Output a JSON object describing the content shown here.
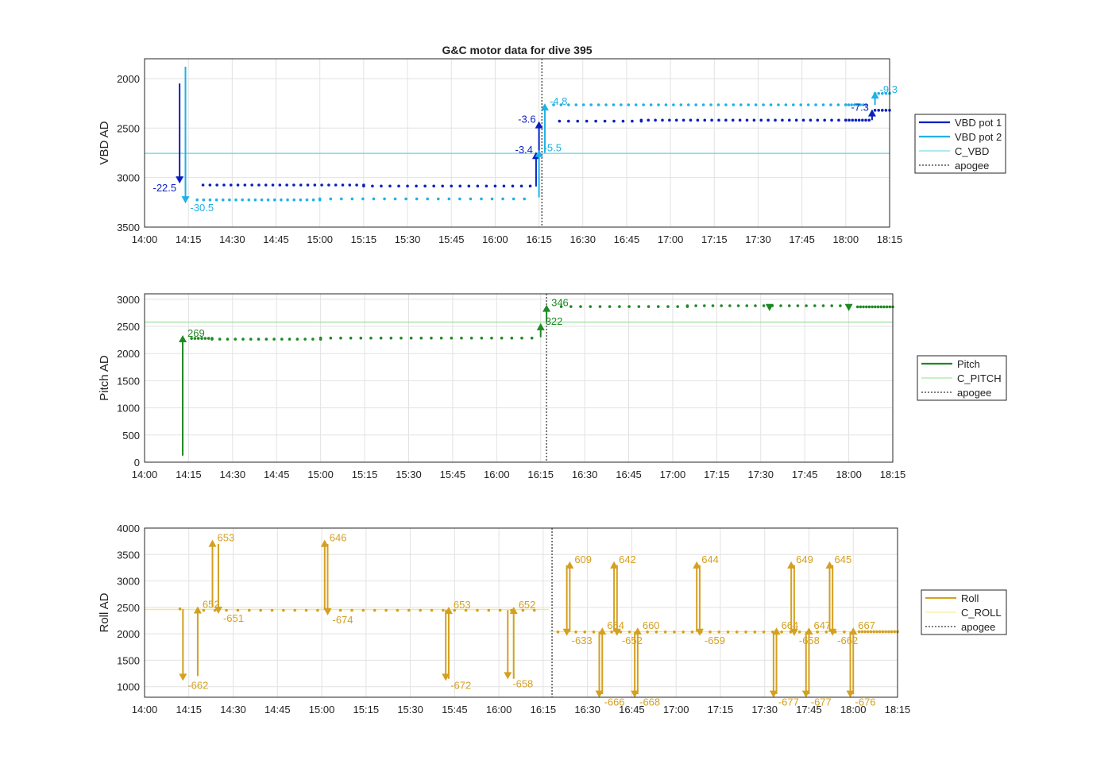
{
  "title": "G&C motor data for dive 395",
  "chart_data": [
    {
      "type": "line",
      "ylabel": "VBD AD",
      "xlabel": "",
      "xlim": [
        "14:00",
        "18:15"
      ],
      "ylim": [
        1800,
        3500
      ],
      "y_reversed": true,
      "yticks": [
        2000,
        2500,
        3000,
        3500
      ],
      "grid": true,
      "legend_position": "right",
      "legend": [
        "VBD pot 1",
        "VBD pot 2",
        "C_VBD",
        "apogee"
      ],
      "colors": {
        "pot1": "#0a1fc0",
        "pot2": "#1fb2e6",
        "c": "#5fd6e6",
        "apogee": "#555555"
      },
      "c_value": 2755,
      "apogee": "16:16",
      "series": [
        {
          "name": "VBD pot 1",
          "segments": [
            {
              "t": [
                "14:20",
                "15:15"
              ],
              "n": 24,
              "y": 3075
            },
            {
              "t": [
                "15:15",
                "16:12"
              ],
              "n": 20,
              "y": 3085
            },
            {
              "t": [
                "16:22",
                "16:50"
              ],
              "n": 10,
              "y": 2430
            },
            {
              "t": [
                "16:50",
                "18:00"
              ],
              "n": 30,
              "y": 2420
            },
            {
              "t": [
                "18:00",
                "18:08"
              ],
              "n": 8,
              "y": 2420
            },
            {
              "t": [
                "18:10",
                "18:15"
              ],
              "n": 5,
              "y": 2320
            }
          ]
        },
        {
          "name": "VBD pot 2",
          "segments": [
            {
              "t": [
                "14:18",
                "15:00"
              ],
              "n": 20,
              "y": 3225
            },
            {
              "t": [
                "15:00",
                "16:10"
              ],
              "n": 20,
              "y": 3215
            },
            {
              "t": [
                "16:20",
                "18:00"
              ],
              "n": 40,
              "y": 2265
            },
            {
              "t": [
                "18:00",
                "18:07"
              ],
              "n": 8,
              "y": 2265
            },
            {
              "t": [
                "18:10",
                "18:15"
              ],
              "n": 5,
              "y": 2150
            }
          ]
        }
      ],
      "arrows": [
        {
          "t": "14:12",
          "from": 2050,
          "to": 3060,
          "label": "-22.5",
          "series": "pot1",
          "label_side": "left"
        },
        {
          "t": "14:14",
          "from": 1880,
          "to": 3260,
          "label": "-30.5",
          "series": "pot2",
          "label_side": "right"
        },
        {
          "t": "16:14",
          "from": 3090,
          "to": 2740,
          "label": "-3.4",
          "series": "pot1",
          "label_side": "left"
        },
        {
          "t": "16:15",
          "from": 2760,
          "to": 2430,
          "label": "-3.6",
          "series": "pot1",
          "label_side": "left"
        },
        {
          "t": "16:15",
          "from": 3200,
          "to": 2720,
          "label": "-5.5",
          "series": "pot2",
          "label_side": "right"
        },
        {
          "t": "16:17",
          "from": 2750,
          "to": 2250,
          "label": "-4.8",
          "series": "pot2",
          "label_side": "right"
        },
        {
          "t": "18:09",
          "from": 2420,
          "to": 2310,
          "label": "-7.3",
          "series": "pot1",
          "label_side": "left"
        },
        {
          "t": "18:10",
          "from": 2265,
          "to": 2130,
          "label": "-9.3",
          "series": "pot2",
          "label_side": "right"
        }
      ]
    },
    {
      "type": "line",
      "ylabel": "Pitch AD",
      "xlabel": "",
      "xlim": [
        "14:00",
        "18:15"
      ],
      "ylim": [
        0,
        3100
      ],
      "yticks": [
        0,
        500,
        1000,
        1500,
        2000,
        2500,
        3000
      ],
      "grid": true,
      "legend_position": "right",
      "legend": [
        "Pitch",
        "C_PITCH",
        "apogee"
      ],
      "colors": {
        "pitch": "#1f8a24",
        "c": "#8fe08f",
        "apogee": "#555555"
      },
      "c_value": 2580,
      "apogee": "16:17",
      "series": [
        {
          "name": "Pitch",
          "segments": [
            {
              "t": [
                "14:16",
                "14:23"
              ],
              "n": 7,
              "y": 2280
            },
            {
              "t": [
                "14:23",
                "15:00"
              ],
              "n": 15,
              "y": 2265
            },
            {
              "t": [
                "15:00",
                "16:12"
              ],
              "n": 22,
              "y": 2285
            },
            {
              "t": [
                "16:22",
                "17:05"
              ],
              "n": 14,
              "y": 2865
            },
            {
              "t": [
                "17:05",
                "18:00"
              ],
              "n": 20,
              "y": 2880
            },
            {
              "t": [
                "18:03",
                "18:15"
              ],
              "n": 13,
              "y": 2860
            }
          ]
        }
      ],
      "arrows": [
        {
          "t": "14:13",
          "from": 120,
          "to": 2340,
          "label": "269",
          "series": "pitch",
          "label_side": "right"
        },
        {
          "t": "16:15",
          "from": 2300,
          "to": 2560,
          "label": "322",
          "series": "pitch",
          "label_side": "right"
        },
        {
          "t": "16:17",
          "from": 2580,
          "to": 2900,
          "label": "346",
          "series": "pitch",
          "label_side": "right"
        }
      ],
      "markers": [
        {
          "t": "17:33",
          "y": 2840,
          "shape": "triangle-down"
        },
        {
          "t": "18:00",
          "y": 2840,
          "shape": "triangle-down"
        }
      ]
    },
    {
      "type": "line",
      "ylabel": "Roll AD",
      "xlabel": "",
      "xlim": [
        "14:00",
        "18:15"
      ],
      "ylim": [
        800,
        4000
      ],
      "yticks": [
        1000,
        1500,
        2000,
        2500,
        3000,
        3500,
        4000
      ],
      "grid": true,
      "legend_position": "right",
      "legend": [
        "Roll",
        "C_ROLL",
        "apogee"
      ],
      "colors": {
        "roll": "#d4a020",
        "c": "#f3e98a",
        "apogee": "#555555"
      },
      "apogee": "16:18",
      "c_segments": [
        {
          "t": [
            "14:00",
            "16:17"
          ],
          "y": 2460
        },
        {
          "t": [
            "16:17",
            "18:15"
          ],
          "y": 2040
        }
      ],
      "series": [
        {
          "name": "Roll",
          "segments": [
            {
              "t": [
                "14:12",
                "14:13"
              ],
              "n": 1,
              "y": 2470
            },
            {
              "t": [
                "14:20",
                "16:12"
              ],
              "n": 30,
              "y": 2445
            },
            {
              "t": [
                "16:20",
                "18:00"
              ],
              "n": 34,
              "y": 2035
            },
            {
              "t": [
                "18:02",
                "18:15"
              ],
              "n": 14,
              "y": 2040
            }
          ]
        }
      ],
      "arrows": [
        {
          "t": "14:13",
          "from": 2470,
          "to": 1110,
          "label": "-662",
          "label_side": "right",
          "label_at": "end"
        },
        {
          "t": "14:18",
          "from": 1200,
          "to": 2520,
          "label": "652",
          "label_side": "right",
          "label_at": "end"
        },
        {
          "t": "14:23",
          "from": 2500,
          "to": 3780,
          "label": "653",
          "label_side": "right",
          "label_at": "end"
        },
        {
          "t": "14:25",
          "from": 3700,
          "to": 2380,
          "label": "-651",
          "label_side": "right",
          "label_at": "end"
        },
        {
          "t": "15:01",
          "from": 2450,
          "to": 3780,
          "label": "646",
          "label_side": "right",
          "label_at": "end"
        },
        {
          "t": "15:02",
          "from": 3700,
          "to": 2350,
          "label": "-674",
          "label_side": "right",
          "label_at": "end"
        },
        {
          "t": "15:42",
          "from": 2450,
          "to": 1110,
          "label": "-672",
          "label_side": "right",
          "label_at": "end"
        },
        {
          "t": "15:43",
          "from": 1150,
          "to": 2510,
          "label": "653",
          "label_side": "right",
          "label_at": "end"
        },
        {
          "t": "16:03",
          "from": 2450,
          "to": 1140,
          "label": "-658",
          "label_side": "right",
          "label_at": "end"
        },
        {
          "t": "16:05",
          "from": 1150,
          "to": 2510,
          "label": "652",
          "label_side": "right",
          "label_at": "end"
        },
        {
          "t": "16:23",
          "from": 3300,
          "to": 1960,
          "label": "-633",
          "label_side": "right",
          "label_at": "end"
        },
        {
          "t": "16:24",
          "from": 2040,
          "to": 3370,
          "label": "609",
          "label_side": "right",
          "label_at": "end"
        },
        {
          "t": "16:34",
          "from": 2040,
          "to": 790,
          "label": "-666",
          "label_side": "right",
          "label_at": "end"
        },
        {
          "t": "16:35",
          "from": 860,
          "to": 2120,
          "label": "654",
          "label_side": "right",
          "label_at": "end"
        },
        {
          "t": "16:39",
          "from": 2040,
          "to": 3370,
          "label": "642",
          "label_side": "right",
          "label_at": "end"
        },
        {
          "t": "16:40",
          "from": 3300,
          "to": 1960,
          "label": "-652",
          "label_side": "right",
          "label_at": "end"
        },
        {
          "t": "16:46",
          "from": 2040,
          "to": 790,
          "label": "-668",
          "label_side": "right",
          "label_at": "end"
        },
        {
          "t": "16:47",
          "from": 860,
          "to": 2120,
          "label": "660",
          "label_side": "right",
          "label_at": "end"
        },
        {
          "t": "17:07",
          "from": 2040,
          "to": 3370,
          "label": "644",
          "label_side": "right",
          "label_at": "end"
        },
        {
          "t": "17:08",
          "from": 3300,
          "to": 1960,
          "label": "-659",
          "label_side": "right",
          "label_at": "end"
        },
        {
          "t": "17:33",
          "from": 2040,
          "to": 790,
          "label": "-677",
          "label_side": "right",
          "label_at": "end"
        },
        {
          "t": "17:34",
          "from": 860,
          "to": 2120,
          "label": "664",
          "label_side": "right",
          "label_at": "end"
        },
        {
          "t": "17:39",
          "from": 2040,
          "to": 3370,
          "label": "649",
          "label_side": "right",
          "label_at": "end"
        },
        {
          "t": "17:40",
          "from": 3300,
          "to": 1960,
          "label": "-658",
          "label_side": "right",
          "label_at": "end"
        },
        {
          "t": "17:44",
          "from": 2040,
          "to": 790,
          "label": "-677",
          "label_side": "right",
          "label_at": "end"
        },
        {
          "t": "17:45",
          "from": 860,
          "to": 2120,
          "label": "647",
          "label_side": "right",
          "label_at": "end"
        },
        {
          "t": "17:52",
          "from": 2040,
          "to": 3370,
          "label": "645",
          "label_side": "right",
          "label_at": "end"
        },
        {
          "t": "17:53",
          "from": 3300,
          "to": 1960,
          "label": "-662",
          "label_side": "right",
          "label_at": "end"
        },
        {
          "t": "17:59",
          "from": 2040,
          "to": 790,
          "label": "-676",
          "label_side": "right",
          "label_at": "end"
        },
        {
          "t": "18:00",
          "from": 860,
          "to": 2120,
          "label": "667",
          "label_side": "right",
          "label_at": "end"
        }
      ]
    }
  ],
  "xticks": [
    "14:00",
    "14:15",
    "14:30",
    "14:45",
    "15:00",
    "15:15",
    "15:30",
    "15:45",
    "16:00",
    "16:15",
    "16:30",
    "16:45",
    "17:00",
    "17:15",
    "17:30",
    "17:45",
    "18:00",
    "18:15"
  ]
}
